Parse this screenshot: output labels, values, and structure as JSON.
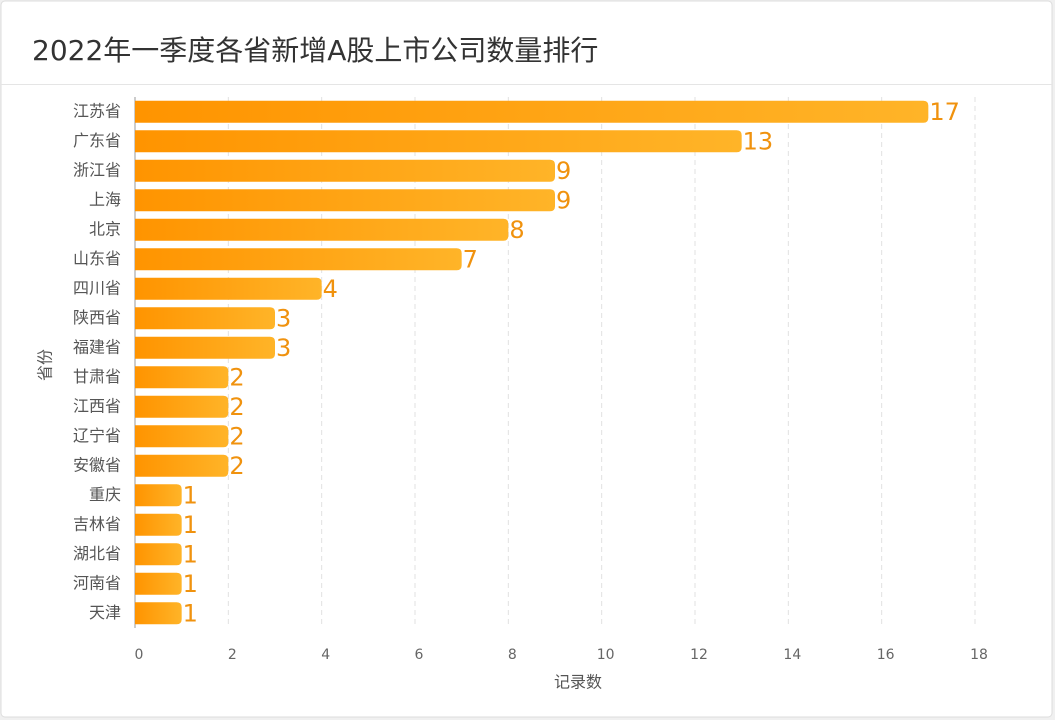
{
  "chart_data": {
    "type": "bar",
    "orientation": "horizontal",
    "title": "2022年一季度各省新增A股上市公司数量排行",
    "x_label": "记录数",
    "y_label": "省份",
    "categories": [
      "江苏省",
      "广东省",
      "浙江省",
      "上海",
      "北京",
      "山东省",
      "四川省",
      "陕西省",
      "福建省",
      "甘肃省",
      "江西省",
      "辽宁省",
      "安徽省",
      "重庆",
      "吉林省",
      "湖北省",
      "河南省",
      "天津"
    ],
    "values": [
      17,
      13,
      9,
      9,
      8,
      7,
      4,
      3,
      3,
      2,
      2,
      2,
      2,
      1,
      1,
      1,
      1,
      1
    ],
    "gradient": [
      "#ff9400",
      "#ffb428"
    ],
    "label_color": "#f0920e",
    "xlim": [
      0,
      18
    ],
    "xticks": [
      0,
      2,
      4,
      6,
      8,
      10,
      12,
      14,
      16,
      18
    ],
    "grid": true
  }
}
